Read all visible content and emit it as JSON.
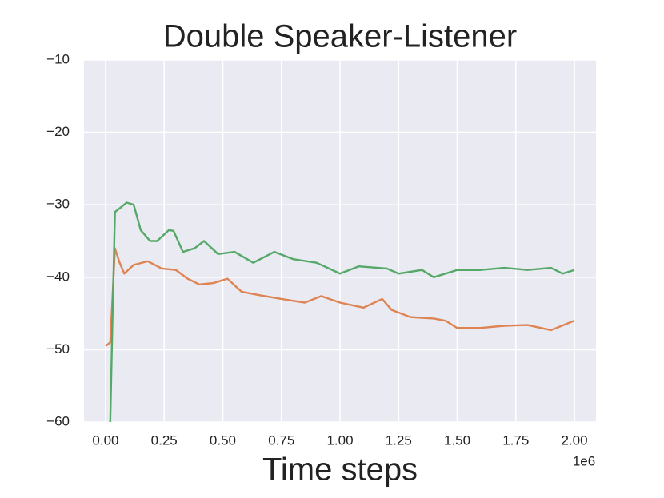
{
  "chart_data": {
    "type": "line",
    "title": "Double Speaker-Listener",
    "x_label": "Time steps",
    "x_offset_label": "1e6",
    "xlim": [
      -0.092,
      2.092
    ],
    "ylim": [
      -60,
      -10
    ],
    "grid": true,
    "background": "#eaeaf2",
    "xticks": [
      {
        "value": 0,
        "label": "0.00"
      },
      0.25,
      {
        "value": 0.5,
        "label": "0.50"
      },
      0.75,
      {
        "value": 1,
        "label": "1.00"
      },
      1.25,
      {
        "value": 1.5,
        "label": "1.50"
      },
      1.75,
      {
        "value": 2,
        "label": "2.00"
      }
    ],
    "yticks": [
      {
        "value": -60,
        "label": "−60"
      },
      {
        "value": -50,
        "label": "−50"
      },
      {
        "value": -40,
        "label": "−40"
      },
      {
        "value": -30,
        "label": "−30"
      },
      {
        "value": -20,
        "label": "−20"
      },
      {
        "value": -10,
        "label": "−10"
      }
    ],
    "series": [
      {
        "color": "#dd8452",
        "x": [
          0,
          0.02,
          0.04,
          0.06,
          0.08,
          0.12,
          0.18,
          0.24,
          0.3,
          0.35,
          0.4,
          0.46,
          0.52,
          0.58,
          0.66,
          0.75,
          0.85,
          0.92,
          1.0,
          1.1,
          1.18,
          1.22,
          1.3,
          1.4,
          1.45,
          1.5,
          1.6,
          1.7,
          1.8,
          1.9,
          2.0
        ],
        "values": [
          -49.5,
          -49,
          -36,
          -38,
          -39.5,
          -38.3,
          -37.8,
          -38.8,
          -39,
          -40.2,
          -41,
          -40.8,
          -40.2,
          -42,
          -42.5,
          -43,
          -43.5,
          -42.6,
          -43.5,
          -44.2,
          -43,
          -44.5,
          -45.5,
          -45.7,
          -46,
          -47,
          -47,
          -46.7,
          -46.6,
          -47.3,
          -46
        ]
      },
      {
        "color": "#55a868",
        "x": [
          0.02,
          0.03,
          0.04,
          0.06,
          0.09,
          0.12,
          0.15,
          0.19,
          0.22,
          0.27,
          0.29,
          0.33,
          0.38,
          0.42,
          0.48,
          0.55,
          0.63,
          0.72,
          0.8,
          0.9,
          1.0,
          1.08,
          1.2,
          1.25,
          1.35,
          1.4,
          1.5,
          1.6,
          1.7,
          1.8,
          1.9,
          1.95,
          2.0
        ],
        "values": [
          -60,
          -45,
          -31,
          -30.5,
          -29.7,
          -30,
          -33.5,
          -35,
          -35,
          -33.5,
          -33.6,
          -36.5,
          -36,
          -35,
          -36.8,
          -36.5,
          -38,
          -36.5,
          -37.5,
          -38,
          -39.5,
          -38.5,
          -38.8,
          -39.5,
          -39,
          -40,
          -39,
          -39,
          -38.7,
          -39,
          -38.7,
          -39.5,
          -39
        ]
      }
    ]
  }
}
